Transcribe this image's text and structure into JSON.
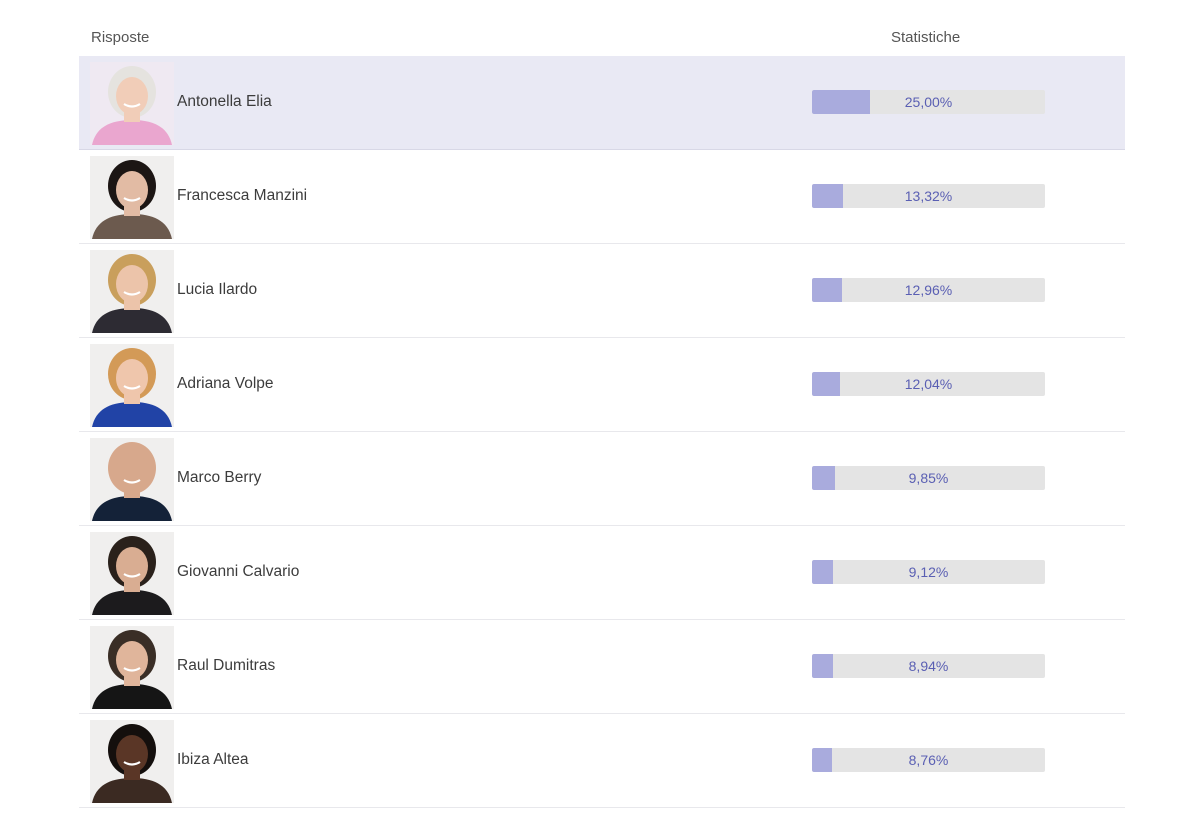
{
  "header": {
    "answers_label": "Risposte",
    "stats_label": "Statistiche"
  },
  "colors": {
    "bar_fill": "#a9abdd",
    "bar_track": "#e4e4e4",
    "selected_row": "#e9e9f4",
    "percent_text": "#5a5fb3"
  },
  "rows": [
    {
      "name": "Antonella Elia",
      "percent_label": "25,00%",
      "percent": 25.0,
      "selected": true,
      "avatar": {
        "bg": "#efe9f2",
        "hair": "#e5e3df",
        "skin": "#f1cdb8",
        "top": "#eaa6cf"
      }
    },
    {
      "name": "Francesca Manzini",
      "percent_label": "13,32%",
      "percent": 13.32,
      "selected": false,
      "avatar": {
        "bg": "#f0efee",
        "hair": "#1c1614",
        "skin": "#e2bba4",
        "top": "#6c5a4e"
      }
    },
    {
      "name": "Lucia Ilardo",
      "percent_label": "12,96%",
      "percent": 12.96,
      "selected": false,
      "avatar": {
        "bg": "#f0efee",
        "hair": "#c99f5c",
        "skin": "#ecc4aa",
        "top": "#2d2b33"
      }
    },
    {
      "name": "Adriana Volpe",
      "percent_label": "12,04%",
      "percent": 12.04,
      "selected": false,
      "avatar": {
        "bg": "#f0efee",
        "hair": "#d39a57",
        "skin": "#efc6ac",
        "top": "#2143a6"
      }
    },
    {
      "name": "Marco Berry",
      "percent_label": "9,85%",
      "percent": 9.85,
      "selected": false,
      "avatar": {
        "bg": "#f0efee",
        "hair": "#d7a88c",
        "skin": "#d7a88c",
        "top": "#142238"
      }
    },
    {
      "name": "Giovanni Calvario",
      "percent_label": "9,12%",
      "percent": 9.12,
      "selected": false,
      "avatar": {
        "bg": "#f0efee",
        "hair": "#2a211b",
        "skin": "#d9ad92",
        "top": "#1c1b1d"
      }
    },
    {
      "name": "Raul Dumitras",
      "percent_label": "8,94%",
      "percent": 8.94,
      "selected": false,
      "avatar": {
        "bg": "#f0efee",
        "hair": "#3a2e26",
        "skin": "#e0b59b",
        "top": "#151515"
      }
    },
    {
      "name": "Ibiza Altea",
      "percent_label": "8,76%",
      "percent": 8.76,
      "selected": false,
      "avatar": {
        "bg": "#f0efee",
        "hair": "#140f0d",
        "skin": "#5a3626",
        "top": "#3b2a22"
      }
    }
  ]
}
